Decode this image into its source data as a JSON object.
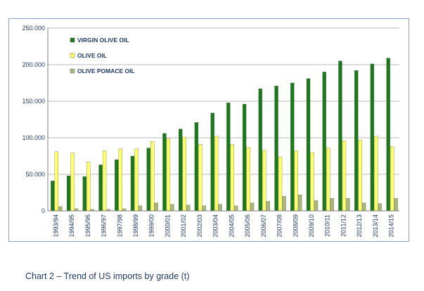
{
  "chart_data": {
    "type": "bar",
    "title": "",
    "xlabel": "",
    "ylabel": "",
    "ylim": [
      0,
      250000
    ],
    "yticks": [
      {
        "value": 0,
        "label": "0"
      },
      {
        "value": 50000,
        "label": "50.000"
      },
      {
        "value": 100000,
        "label": "100.000"
      },
      {
        "value": 150000,
        "label": "150.000"
      },
      {
        "value": 200000,
        "label": "200.000"
      },
      {
        "value": 250000,
        "label": "250.000"
      }
    ],
    "grid": true,
    "legend_position": "top-left",
    "categories": [
      "1993/94",
      "1994/95",
      "1995/96",
      "1996/97",
      "1997/98",
      "1998/99",
      "1999/00",
      "2000/01",
      "2001/02",
      "2002/03",
      "2003/04",
      "2004/05",
      "2005/06",
      "2006/07",
      "2007/08",
      "2008/09",
      "2009/10",
      "2010/11",
      "2011/12",
      "2012/13",
      "2013/14",
      "2014/15"
    ],
    "series": [
      {
        "name": "VIRGIN OLIVE OIL",
        "color": "#1a7a1a",
        "values": [
          41000,
          48000,
          47000,
          63000,
          70000,
          75000,
          86000,
          106000,
          112000,
          121000,
          134000,
          148000,
          146000,
          167000,
          171000,
          175000,
          181000,
          190000,
          205000,
          192000,
          201000,
          209000
        ]
      },
      {
        "name": "OLIVE OIL",
        "color": "#ffff66",
        "values": [
          81000,
          79000,
          67000,
          82000,
          85000,
          85000,
          95000,
          99000,
          101000,
          91000,
          102000,
          91000,
          87000,
          83000,
          74000,
          82000,
          80000,
          86000,
          96000,
          97000,
          102000,
          88000
        ]
      },
      {
        "name": "OLIVE POMACE OIL",
        "color": "#a9b87a",
        "values": [
          6000,
          3000,
          2000,
          2000,
          3000,
          7000,
          11000,
          9000,
          8000,
          7000,
          9000,
          7000,
          11000,
          13000,
          20000,
          22000,
          14000,
          17000,
          17000,
          11000,
          10000,
          17000
        ]
      }
    ]
  },
  "caption": "Chart 2 – Trend of US imports by grade (t)"
}
